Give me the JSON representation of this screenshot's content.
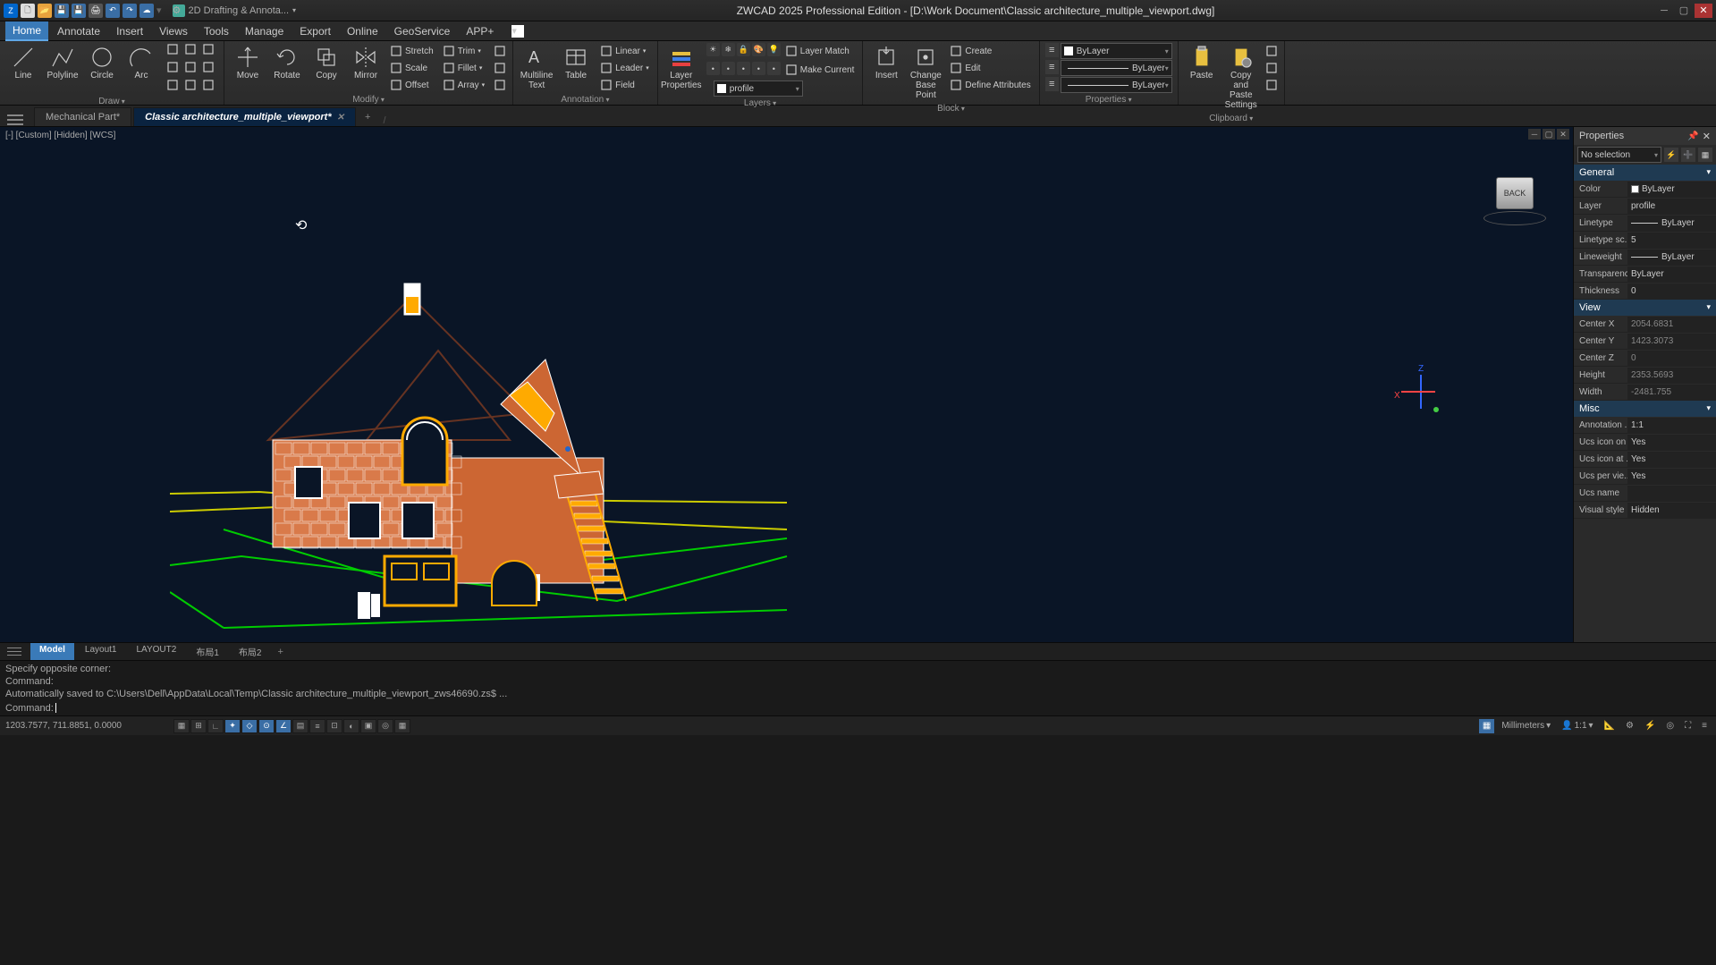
{
  "app": {
    "title": "ZWCAD 2025 Professional Edition - [D:\\Work Document\\Classic architecture_multiple_viewport.dwg]",
    "workspace_label": "2D Drafting & Annota...",
    "qat_icons": [
      "app",
      "new",
      "open",
      "save",
      "saveas",
      "print",
      "undo",
      "redo",
      "cloud",
      "sync",
      "3d"
    ]
  },
  "menus": [
    "Home",
    "Annotate",
    "Insert",
    "Views",
    "Tools",
    "Manage",
    "Export",
    "Online",
    "GeoService",
    "APP+"
  ],
  "active_menu": 0,
  "ribbon": {
    "panels": [
      {
        "name": "Draw",
        "big": [
          {
            "label": "Line",
            "icon": "line"
          },
          {
            "label": "Polyline",
            "icon": "polyline"
          },
          {
            "label": "Circle",
            "icon": "circle"
          },
          {
            "label": "Arc",
            "icon": "arc"
          }
        ],
        "small_grid": true
      },
      {
        "name": "Modify",
        "big": [
          {
            "label": "Move",
            "icon": "move"
          },
          {
            "label": "Rotate",
            "icon": "rotate"
          },
          {
            "label": "Copy",
            "icon": "copy"
          },
          {
            "label": "Mirror",
            "icon": "mirror"
          }
        ],
        "col": [
          {
            "label": "Stretch",
            "icon": "stretch"
          },
          {
            "label": "Scale",
            "icon": "scale"
          },
          {
            "label": "Offset",
            "icon": "offset"
          }
        ],
        "col2": [
          {
            "label": "Trim",
            "icon": "trim",
            "dd": true
          },
          {
            "label": "Fillet",
            "icon": "fillet",
            "dd": true
          },
          {
            "label": "Array",
            "icon": "array",
            "dd": true
          }
        ],
        "extra_col": [
          "brush1",
          "brush2",
          "brush3"
        ]
      },
      {
        "name": "Annotation",
        "big": [
          {
            "label": "Multiline\nText",
            "icon": "mtext"
          },
          {
            "label": "Table",
            "icon": "table"
          }
        ],
        "col": [
          {
            "label": "Linear",
            "icon": "linear",
            "dd": true
          },
          {
            "label": "Leader",
            "icon": "leader",
            "dd": true
          },
          {
            "label": "Field",
            "icon": "field"
          }
        ]
      },
      {
        "name": "Layers",
        "big": [
          {
            "label": "Layer\nProperties",
            "icon": "layerprops"
          }
        ],
        "layer_match": "Layer Match",
        "make_current": "Make Current",
        "layer_combo": "profile",
        "layer_sw": "#ffffff"
      },
      {
        "name": "Block",
        "big": [
          {
            "label": "Insert",
            "icon": "insert"
          },
          {
            "label": "Change\nBase Point",
            "icon": "basepoint"
          }
        ],
        "col": [
          {
            "label": "Create",
            "icon": "create"
          },
          {
            "label": "Edit",
            "icon": "edit"
          },
          {
            "label": "Define Attributes",
            "icon": "defattr"
          }
        ]
      },
      {
        "name": "Properties",
        "combos": [
          {
            "value": "ByLayer",
            "sw": "#ffffff",
            "type": "color"
          },
          {
            "value": "ByLayer",
            "type": "ltype"
          },
          {
            "value": "ByLayer",
            "type": "lweight"
          }
        ]
      },
      {
        "name": "Clipboard",
        "big": [
          {
            "label": "Paste",
            "icon": "paste"
          },
          {
            "label": "Copy and Paste\nSettings",
            "icon": "copysettings"
          }
        ],
        "extra_col": [
          "match",
          "a",
          "b"
        ]
      }
    ]
  },
  "doctabs": [
    {
      "label": "Mechanical Part*",
      "active": false
    },
    {
      "label": "Classic architecture_multiple_viewport*",
      "active": true
    }
  ],
  "viewport": {
    "label": "[-] [Custom] [Hidden] [WCS]",
    "nav_face": "BACK",
    "axes": {
      "x": "X",
      "z": "Z"
    },
    "drawing": {
      "ground_color": "#00cc00",
      "ground_color2": "#cccc00",
      "wall_color": "#cc6633",
      "brick_color": "#d97a4a",
      "detail_color": "#ffaa00",
      "roof_color": "#663322",
      "white": "#ffffff",
      "blue": "#2266cc",
      "bg": "#0a1526"
    }
  },
  "properties": {
    "title": "Properties",
    "selection": "No selection",
    "sections": [
      {
        "name": "General",
        "rows": [
          {
            "k": "Color",
            "v": "ByLayer",
            "sw": "#ffffff"
          },
          {
            "k": "Layer",
            "v": "profile"
          },
          {
            "k": "Linetype",
            "v": "ByLayer",
            "line": true
          },
          {
            "k": "Linetype sc...",
            "v": "5"
          },
          {
            "k": "Lineweight",
            "v": "ByLayer",
            "line": true
          },
          {
            "k": "Transparency",
            "v": "ByLayer"
          },
          {
            "k": "Thickness",
            "v": "0"
          }
        ]
      },
      {
        "name": "View",
        "rows": [
          {
            "k": "Center X",
            "v": "2054.6831",
            "ro": true
          },
          {
            "k": "Center Y",
            "v": "1423.3073",
            "ro": true
          },
          {
            "k": "Center Z",
            "v": "0",
            "ro": true
          },
          {
            "k": "Height",
            "v": "2353.5693",
            "ro": true
          },
          {
            "k": "Width",
            "v": "-2481.755",
            "ro": true
          }
        ]
      },
      {
        "name": "Misc",
        "rows": [
          {
            "k": "Annotation ...",
            "v": "1:1"
          },
          {
            "k": "Ucs icon on",
            "v": "Yes"
          },
          {
            "k": "Ucs icon at ...",
            "v": "Yes"
          },
          {
            "k": "Ucs per vie...",
            "v": "Yes"
          },
          {
            "k": "Ucs name",
            "v": ""
          },
          {
            "k": "Visual style",
            "v": "Hidden"
          }
        ]
      }
    ]
  },
  "layouttabs": [
    "Model",
    "Layout1",
    "LAYOUT2",
    "布局1",
    "布局2"
  ],
  "active_layout": 0,
  "command": {
    "history": [
      "Specify opposite corner:",
      "Command:",
      "Automatically saved to C:\\Users\\Dell\\AppData\\Local\\Temp\\Classic architecture_multiple_viewport_zws46690.zs$ ..."
    ],
    "prompt": "Command: "
  },
  "statusbar": {
    "coords": "1203.7577, 711.8851, 0.0000",
    "toggles": [
      "grid",
      "snap",
      "ortho",
      "polar",
      "osnap",
      "otrack",
      "ducs",
      "dyn",
      "lwt",
      "tr",
      "qs",
      "sel",
      "cyc",
      "am"
    ],
    "active_toggles": [
      3,
      4,
      5,
      6
    ],
    "units": "Millimeters",
    "scale": "1:1"
  }
}
